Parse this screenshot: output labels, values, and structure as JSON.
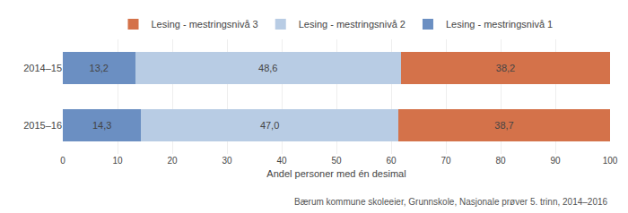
{
  "chart_data": {
    "type": "bar",
    "orientation": "horizontal",
    "stacked": true,
    "data_labels": true,
    "categories": [
      "2014–15",
      "2015–16"
    ],
    "series": [
      {
        "name": "Lesing - mestringsnivå 1",
        "color": "#6b8fc2",
        "values": [
          13.2,
          14.3
        ],
        "value_labels": [
          "13,2",
          "14,3"
        ]
      },
      {
        "name": "Lesing - mestringsnivå 2",
        "color": "#b8cce4",
        "values": [
          48.6,
          47.0
        ],
        "value_labels": [
          "48,6",
          "47,0"
        ]
      },
      {
        "name": "Lesing - mestringsnivå 3",
        "color": "#d4724a",
        "values": [
          38.2,
          38.7
        ],
        "value_labels": [
          "38,2",
          "38,7"
        ]
      }
    ],
    "xlabel": "Andel personer med én desimal",
    "xlim": [
      0,
      100
    ],
    "xticks": [
      0,
      10,
      20,
      30,
      40,
      50,
      60,
      70,
      80,
      90,
      100
    ],
    "grid": true,
    "legend": "top",
    "annotations": [
      "Bærum kommune skoleeier, Grunnskole, Nasjonale prøver 5. trinn, 2014–2016"
    ]
  }
}
